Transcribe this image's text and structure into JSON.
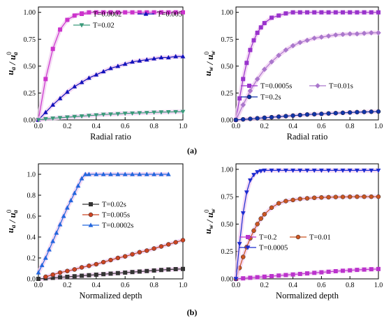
{
  "chart_data": [
    {
      "type": "line",
      "panel": "top-left",
      "xlabel": "Radial ratio",
      "ylabel": "u_a / u_a^0",
      "xlim": [
        0,
        1.0
      ],
      "ylim": [
        0,
        1.05
      ],
      "xticks": [
        "0.0",
        "0.2",
        "0.4",
        "0.6",
        "0.8",
        "1.0"
      ],
      "yticks": [
        "0.00",
        "0.25",
        "0.50",
        "0.75",
        "1.00"
      ],
      "legend_placement": "top-right",
      "series": [
        {
          "name": "T=0.0002",
          "color": "#cc33cc",
          "marker": "square",
          "x": [
            0.0,
            0.05,
            0.1,
            0.15,
            0.2,
            0.25,
            0.3,
            0.35,
            0.4,
            0.45,
            0.5,
            0.55,
            0.6,
            0.65,
            0.7,
            0.75,
            0.8,
            0.85,
            0.9,
            0.95,
            1.0
          ],
          "y": [
            0.0,
            0.38,
            0.66,
            0.84,
            0.93,
            0.97,
            0.99,
            1.0,
            1.0,
            1.0,
            1.0,
            1.0,
            1.0,
            1.0,
            1.0,
            1.0,
            1.0,
            1.0,
            1.0,
            1.0,
            1.0
          ]
        },
        {
          "name": "T=0.005",
          "color": "#1111bb",
          "marker": "triangle-up",
          "x": [
            0.0,
            0.05,
            0.1,
            0.15,
            0.2,
            0.25,
            0.3,
            0.35,
            0.4,
            0.45,
            0.5,
            0.55,
            0.6,
            0.65,
            0.7,
            0.75,
            0.8,
            0.85,
            0.9,
            0.95,
            1.0
          ],
          "y": [
            0.0,
            0.07,
            0.14,
            0.2,
            0.26,
            0.31,
            0.35,
            0.39,
            0.42,
            0.45,
            0.48,
            0.5,
            0.52,
            0.54,
            0.55,
            0.56,
            0.57,
            0.58,
            0.58,
            0.59,
            0.59
          ]
        },
        {
          "name": "T=0.02",
          "color": "#3a9a7a",
          "marker": "triangle-down",
          "x": [
            0.0,
            0.05,
            0.1,
            0.15,
            0.2,
            0.25,
            0.3,
            0.35,
            0.4,
            0.45,
            0.5,
            0.55,
            0.6,
            0.65,
            0.7,
            0.75,
            0.8,
            0.85,
            0.9,
            0.95,
            1.0
          ],
          "y": [
            0.0,
            0.01,
            0.015,
            0.02,
            0.025,
            0.03,
            0.035,
            0.04,
            0.045,
            0.05,
            0.053,
            0.056,
            0.06,
            0.062,
            0.065,
            0.067,
            0.07,
            0.072,
            0.074,
            0.075,
            0.076
          ]
        }
      ]
    },
    {
      "type": "line",
      "panel": "top-right",
      "xlabel": "Radial ratio",
      "ylabel": "u_w / u_w^0",
      "xlim": [
        0,
        1.0
      ],
      "ylim": [
        0,
        1.05
      ],
      "xticks": [
        "0.0",
        "0.2",
        "0.4",
        "0.6",
        "0.8",
        "1.0"
      ],
      "yticks": [
        "0.00",
        "0.25",
        "0.50",
        "0.75",
        "1.00"
      ],
      "legend_placement": "bottom-right",
      "series": [
        {
          "name": "T=0.0005s",
          "color": "#9933cc",
          "marker": "square",
          "x": [
            0.0,
            0.025,
            0.05,
            0.075,
            0.1,
            0.125,
            0.15,
            0.175,
            0.2,
            0.25,
            0.3,
            0.35,
            0.4,
            0.45,
            0.5,
            0.55,
            0.6,
            0.65,
            0.7,
            0.75,
            0.8,
            0.85,
            0.9,
            0.95,
            1.0
          ],
          "y": [
            0.0,
            0.2,
            0.38,
            0.53,
            0.65,
            0.74,
            0.81,
            0.86,
            0.9,
            0.95,
            0.97,
            0.99,
            1.0,
            1.0,
            1.0,
            1.0,
            1.0,
            1.0,
            1.0,
            1.0,
            1.0,
            1.0,
            1.0,
            1.0,
            1.0
          ]
        },
        {
          "name": "T=0.01s",
          "color": "#aa77cc",
          "marker": "diamond",
          "x": [
            0.0,
            0.05,
            0.1,
            0.15,
            0.2,
            0.25,
            0.3,
            0.35,
            0.4,
            0.45,
            0.5,
            0.55,
            0.6,
            0.65,
            0.7,
            0.75,
            0.8,
            0.85,
            0.9,
            0.95,
            1.0
          ],
          "y": [
            0.0,
            0.14,
            0.27,
            0.38,
            0.47,
            0.54,
            0.6,
            0.65,
            0.69,
            0.72,
            0.74,
            0.76,
            0.77,
            0.78,
            0.79,
            0.795,
            0.8,
            0.8,
            0.805,
            0.81,
            0.81
          ]
        },
        {
          "name": "T=0.2s",
          "color": "#1133aa",
          "marker": "circle",
          "x": [
            0.0,
            0.05,
            0.1,
            0.15,
            0.2,
            0.25,
            0.3,
            0.35,
            0.4,
            0.45,
            0.5,
            0.55,
            0.6,
            0.65,
            0.7,
            0.75,
            0.8,
            0.85,
            0.9,
            0.95,
            1.0
          ],
          "y": [
            0.0,
            0.005,
            0.01,
            0.015,
            0.02,
            0.025,
            0.03,
            0.035,
            0.04,
            0.045,
            0.05,
            0.053,
            0.056,
            0.06,
            0.063,
            0.066,
            0.069,
            0.072,
            0.074,
            0.076,
            0.078
          ]
        }
      ]
    },
    {
      "type": "line",
      "panel": "bottom-left",
      "xlabel": "Normalized depth",
      "ylabel": "u_a / u_a^0",
      "xlim": [
        0,
        1.0
      ],
      "ylim": [
        0,
        1.1
      ],
      "xticks": [
        "0.0",
        "0.2",
        "0.4",
        "0.6",
        "0.8",
        "1.0"
      ],
      "yticks": [
        "0.0",
        "0.2",
        "0.4",
        "0.6",
        "0.8",
        "1.0"
      ],
      "legend_placement": "center",
      "series": [
        {
          "name": "T=0.02s",
          "color": "#333333",
          "marker": "square",
          "x": [
            0.0,
            0.05,
            0.1,
            0.15,
            0.2,
            0.25,
            0.3,
            0.35,
            0.4,
            0.45,
            0.5,
            0.55,
            0.6,
            0.65,
            0.7,
            0.75,
            0.8,
            0.85,
            0.9,
            0.95,
            1.0
          ],
          "y": [
            0.0,
            0.005,
            0.01,
            0.015,
            0.02,
            0.025,
            0.03,
            0.035,
            0.04,
            0.045,
            0.05,
            0.055,
            0.06,
            0.065,
            0.07,
            0.075,
            0.08,
            0.085,
            0.09,
            0.093,
            0.095
          ]
        },
        {
          "name": "T=0.005s",
          "color": "#cc4422",
          "marker": "circle",
          "x": [
            0.05,
            0.1,
            0.15,
            0.2,
            0.25,
            0.3,
            0.35,
            0.4,
            0.45,
            0.5,
            0.55,
            0.6,
            0.65,
            0.7,
            0.75,
            0.8,
            0.85,
            0.9,
            0.95,
            1.0
          ],
          "y": [
            0.02,
            0.04,
            0.06,
            0.075,
            0.09,
            0.11,
            0.125,
            0.14,
            0.16,
            0.18,
            0.2,
            0.215,
            0.235,
            0.255,
            0.27,
            0.29,
            0.31,
            0.33,
            0.35,
            0.37
          ]
        },
        {
          "name": "T=0.0002s",
          "color": "#2266dd",
          "marker": "triangle-up",
          "x": [
            0.0,
            0.025,
            0.05,
            0.075,
            0.1,
            0.125,
            0.15,
            0.175,
            0.2,
            0.225,
            0.25,
            0.275,
            0.3,
            0.325,
            0.35,
            0.4,
            0.45,
            0.5,
            0.55,
            0.6,
            0.65,
            0.7,
            0.75,
            0.8,
            0.85,
            0.9
          ],
          "y": [
            0.06,
            0.13,
            0.2,
            0.28,
            0.36,
            0.44,
            0.52,
            0.6,
            0.68,
            0.75,
            0.82,
            0.89,
            0.96,
            1.0,
            1.0,
            1.0,
            1.0,
            1.0,
            1.0,
            1.0,
            1.0,
            1.0,
            1.0,
            1.0,
            1.0,
            1.0
          ]
        }
      ]
    },
    {
      "type": "line",
      "panel": "bottom-right",
      "xlabel": "Normalized depth",
      "ylabel": "u_w / u_w^0",
      "xlim": [
        0,
        1.0
      ],
      "ylim": [
        0,
        1.05
      ],
      "xticks": [
        "0.0",
        "0.2",
        "0.4",
        "0.6",
        "0.8",
        "1.0"
      ],
      "yticks": [
        "0.00",
        "0.25",
        "0.50",
        "0.75",
        "1.00"
      ],
      "legend_placement": "bottom-center",
      "series": [
        {
          "name": "T=0.2",
          "color": "#bb33cc",
          "marker": "square",
          "x": [
            0.0,
            0.05,
            0.1,
            0.15,
            0.2,
            0.25,
            0.3,
            0.35,
            0.4,
            0.45,
            0.5,
            0.55,
            0.6,
            0.65,
            0.7,
            0.75,
            0.8,
            0.85,
            0.9,
            0.95,
            1.0
          ],
          "y": [
            0.0,
            0.005,
            0.01,
            0.015,
            0.02,
            0.025,
            0.03,
            0.035,
            0.04,
            0.045,
            0.05,
            0.055,
            0.06,
            0.065,
            0.07,
            0.074,
            0.078,
            0.082,
            0.085,
            0.088,
            0.09
          ]
        },
        {
          "name": "T=0.01",
          "color": "#cc5522",
          "marker": "circle",
          "x": [
            0.0,
            0.025,
            0.05,
            0.075,
            0.1,
            0.125,
            0.15,
            0.175,
            0.2,
            0.25,
            0.3,
            0.35,
            0.4,
            0.45,
            0.5,
            0.55,
            0.6,
            0.65,
            0.7,
            0.75,
            0.8,
            0.85,
            0.9,
            0.95,
            1.0
          ],
          "y": [
            0.0,
            0.1,
            0.2,
            0.29,
            0.37,
            0.44,
            0.5,
            0.55,
            0.59,
            0.65,
            0.69,
            0.71,
            0.72,
            0.73,
            0.735,
            0.74,
            0.743,
            0.745,
            0.747,
            0.748,
            0.749,
            0.75,
            0.75,
            0.75,
            0.75
          ]
        },
        {
          "name": "T=0.0005",
          "color": "#1a2ad0",
          "marker": "triangle-down",
          "x": [
            0.0,
            0.025,
            0.05,
            0.075,
            0.1,
            0.125,
            0.15,
            0.175,
            0.2,
            0.25,
            0.3,
            0.35,
            0.4,
            0.45,
            0.5,
            0.55,
            0.6,
            0.65,
            0.7,
            0.75,
            0.8,
            0.85,
            0.9,
            0.95,
            1.0
          ],
          "y": [
            0.0,
            0.32,
            0.6,
            0.79,
            0.9,
            0.95,
            0.975,
            0.985,
            0.99,
            0.99,
            0.99,
            0.99,
            0.99,
            0.99,
            0.99,
            0.99,
            0.99,
            0.99,
            0.99,
            0.99,
            0.99,
            0.99,
            0.99,
            0.99,
            0.99
          ]
        }
      ]
    }
  ],
  "captions": {
    "a": "(a)",
    "b": "(b)"
  }
}
